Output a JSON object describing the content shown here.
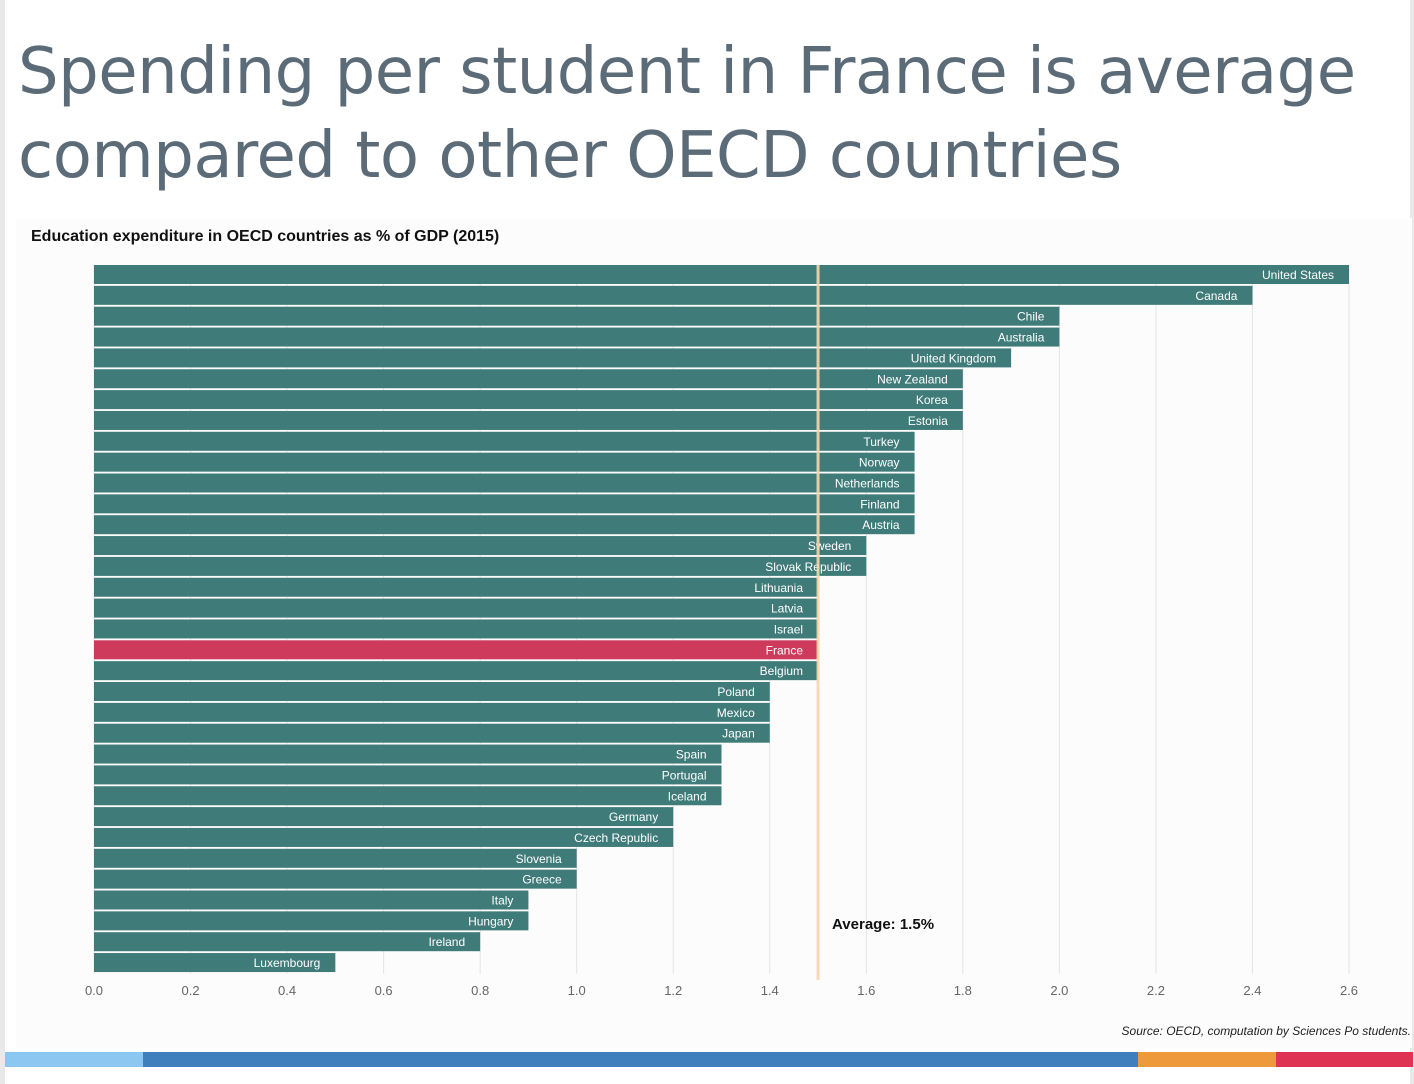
{
  "page": {
    "headline": "Spending per student in France is average compared to other OECD countries",
    "source": "Source: OECD, computation by Sciences Po students.",
    "footer_colors": [
      "#8cc7f2",
      "#3f7fbd",
      "#ee9a3c",
      "#df3354"
    ]
  },
  "chart_data": {
    "type": "bar",
    "orientation": "horizontal",
    "title": "Education expenditure in OECD countries as % of GDP (2015)",
    "xlabel": "",
    "ylabel": "",
    "xlim": [
      0,
      2.6
    ],
    "x_ticks": [
      "0.0",
      "0.2",
      "0.4",
      "0.6",
      "0.8",
      "1.0",
      "1.2",
      "1.4",
      "1.6",
      "1.8",
      "2.0",
      "2.2",
      "2.4",
      "2.6"
    ],
    "grid": true,
    "bar_color": "#3f7b79",
    "highlight_color": "#cd3a5c",
    "highlight": "France",
    "average": {
      "value": 1.5,
      "label": "Average: 1.5%",
      "color": "#f6d7ae"
    },
    "categories": [
      "United States",
      "Canada",
      "Chile",
      "Australia",
      "United Kingdom",
      "New Zealand",
      "Korea",
      "Estonia",
      "Turkey",
      "Norway",
      "Netherlands",
      "Finland",
      "Austria",
      "Sweden",
      "Slovak Republic",
      "Lithuania",
      "Latvia",
      "Israel",
      "France",
      "Belgium",
      "Poland",
      "Mexico",
      "Japan",
      "Spain",
      "Portugal",
      "Iceland",
      "Germany",
      "Czech Republic",
      "Slovenia",
      "Greece",
      "Italy",
      "Hungary",
      "Ireland",
      "Luxembourg"
    ],
    "values": [
      2.6,
      2.4,
      2.0,
      2.0,
      1.9,
      1.8,
      1.8,
      1.8,
      1.7,
      1.7,
      1.7,
      1.7,
      1.7,
      1.6,
      1.6,
      1.5,
      1.5,
      1.5,
      1.5,
      1.5,
      1.4,
      1.4,
      1.4,
      1.3,
      1.3,
      1.3,
      1.2,
      1.2,
      1.0,
      1.0,
      0.9,
      0.9,
      0.8,
      0.5
    ]
  }
}
